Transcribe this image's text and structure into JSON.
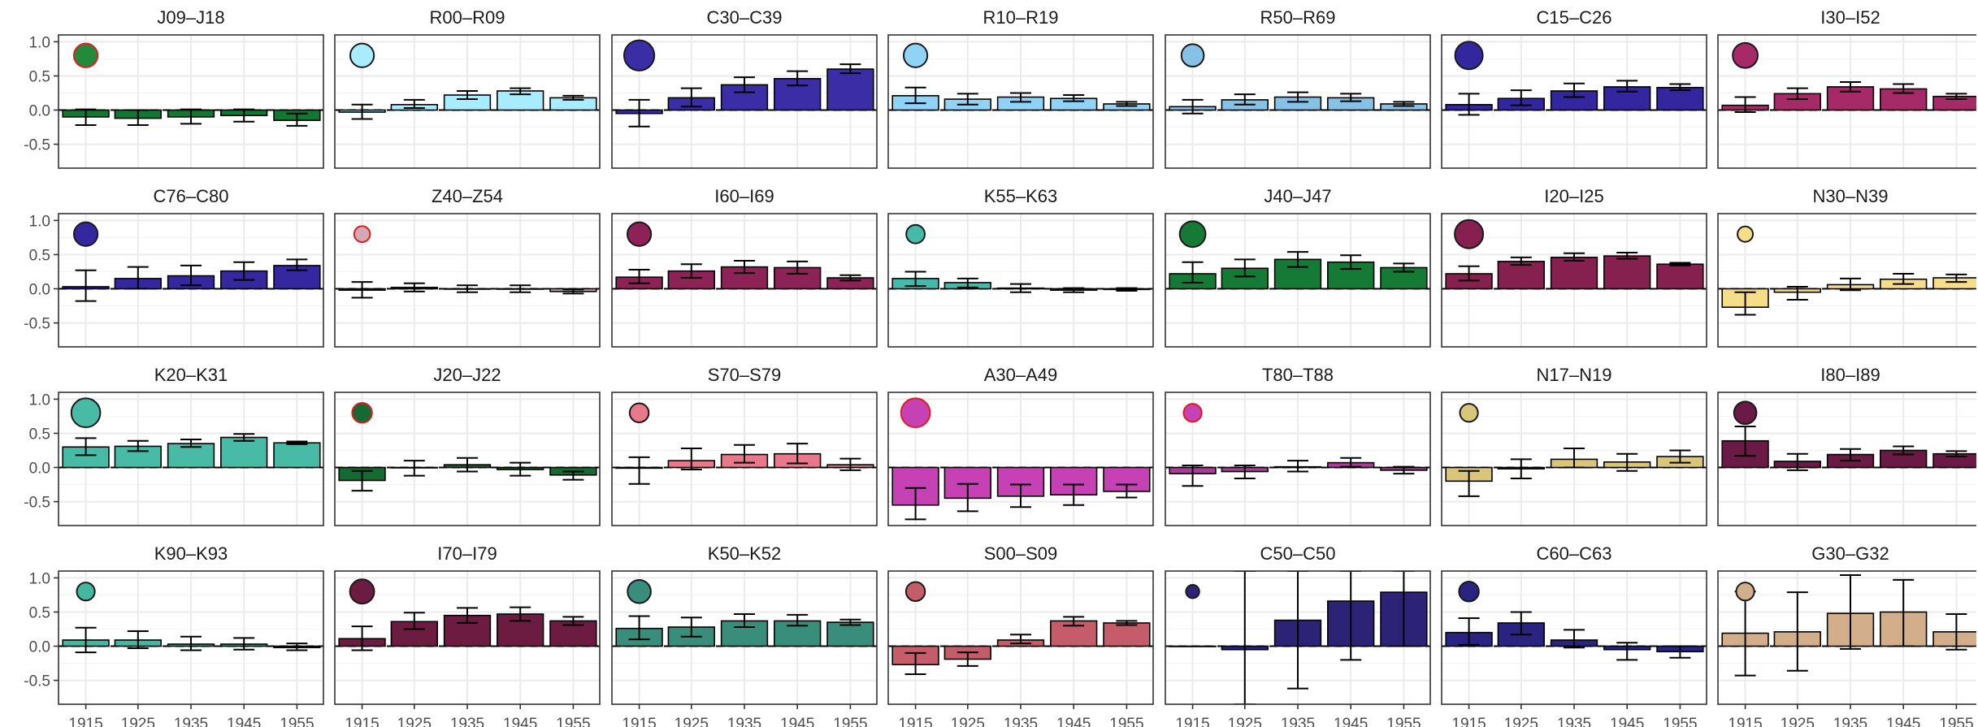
{
  "chart_data": {
    "type": "bar",
    "layout": "small-multiples 4 rows x 7 columns (rightmost column cropped)",
    "categories": [
      "1915",
      "1925",
      "1935",
      "1945",
      "1955"
    ],
    "ylim": [
      -0.85,
      1.1
    ],
    "yticks": [
      -0.5,
      0.0,
      0.5,
      1.0
    ],
    "ytick_labels": [
      "-0.5",
      "0.0",
      "0.5",
      "1.0"
    ],
    "grid": true,
    "zero_line": "dashed",
    "marker_y": 0.8,
    "marker_x": "1915",
    "error_bars": "high and low values per bar",
    "panels": [
      {
        "title": "J09–J18",
        "color": "#117733",
        "marker_fill": "#228B3B",
        "marker_stroke": "#e41a1c",
        "marker_size": 0.6,
        "values": [
          -0.1,
          -0.12,
          -0.1,
          -0.08,
          -0.15
        ],
        "err_low": [
          -0.22,
          -0.22,
          -0.2,
          -0.17,
          -0.23
        ],
        "err_high": [
          0.01,
          0.0,
          0.01,
          0.01,
          -0.05
        ]
      },
      {
        "title": "R00–R09",
        "color": "#a8ecff",
        "marker_fill": "#a8ecff",
        "marker_stroke": "#1a1a1a",
        "marker_size": 0.6,
        "values": [
          -0.03,
          0.08,
          0.22,
          0.28,
          0.18
        ],
        "err_low": [
          -0.13,
          0.03,
          0.16,
          0.23,
          0.15
        ],
        "err_high": [
          0.08,
          0.15,
          0.28,
          0.32,
          0.21
        ]
      },
      {
        "title": "C30–C39",
        "color": "#3b2da5",
        "marker_fill": "#3b2da5",
        "marker_stroke": "#1a1a1a",
        "marker_size": 0.85,
        "values": [
          -0.05,
          0.18,
          0.37,
          0.46,
          0.6
        ],
        "err_low": [
          -0.24,
          0.05,
          0.26,
          0.36,
          0.54
        ],
        "err_high": [
          0.15,
          0.32,
          0.48,
          0.57,
          0.67
        ]
      },
      {
        "title": "R10–R19",
        "color": "#8fd3f7",
        "marker_fill": "#8fd3f7",
        "marker_stroke": "#1a1a1a",
        "marker_size": 0.6,
        "values": [
          0.21,
          0.16,
          0.19,
          0.17,
          0.09
        ],
        "err_low": [
          0.1,
          0.08,
          0.12,
          0.13,
          0.06
        ],
        "err_high": [
          0.33,
          0.24,
          0.25,
          0.22,
          0.12
        ]
      },
      {
        "title": "R50–R69",
        "color": "#86c2e6",
        "marker_fill": "#86c2e6",
        "marker_stroke": "#1a1a1a",
        "marker_size": 0.55,
        "values": [
          0.05,
          0.15,
          0.19,
          0.18,
          0.09
        ],
        "err_low": [
          -0.05,
          0.08,
          0.12,
          0.13,
          0.06
        ],
        "err_high": [
          0.15,
          0.23,
          0.26,
          0.24,
          0.12
        ]
      },
      {
        "title": "C15–C26",
        "color": "#34269e",
        "marker_fill": "#34269e",
        "marker_stroke": "#1a1a1a",
        "marker_size": 0.75,
        "values": [
          0.08,
          0.17,
          0.28,
          0.34,
          0.33
        ],
        "err_low": [
          -0.07,
          0.07,
          0.19,
          0.27,
          0.29
        ],
        "err_high": [
          0.24,
          0.29,
          0.39,
          0.43,
          0.38
        ]
      },
      {
        "title": "I30–I52",
        "color": "#a62a68",
        "marker_fill": "#a62a68",
        "marker_stroke": "#1a1a1a",
        "marker_size": 0.65,
        "values": [
          0.07,
          0.24,
          0.34,
          0.31,
          0.2
        ],
        "err_low": [
          -0.03,
          0.16,
          0.27,
          0.25,
          0.16
        ],
        "err_high": [
          0.19,
          0.32,
          0.41,
          0.38,
          0.24
        ]
      },
      {
        "title": "C76–C80",
        "color": "#35289f",
        "marker_fill": "#35289f",
        "marker_stroke": "#1a1a1a",
        "marker_size": 0.6,
        "values": [
          0.03,
          0.15,
          0.19,
          0.26,
          0.34
        ],
        "err_low": [
          -0.18,
          0.0,
          0.05,
          0.13,
          0.27
        ],
        "err_high": [
          0.27,
          0.32,
          0.34,
          0.39,
          0.43
        ]
      },
      {
        "title": "Z40–Z54",
        "color": "#d1a8b6",
        "marker_fill": "#d1a8b6",
        "marker_stroke": "#e41a1c",
        "marker_size": 0.3,
        "values": [
          -0.02,
          0.02,
          0.0,
          0.0,
          -0.04
        ],
        "err_low": [
          -0.13,
          -0.04,
          -0.05,
          -0.05,
          -0.07
        ],
        "err_high": [
          0.1,
          0.08,
          0.05,
          0.05,
          -0.01
        ]
      },
      {
        "title": "I60–I69",
        "color": "#8c2255",
        "marker_fill": "#8c2255",
        "marker_stroke": "#1a1a1a",
        "marker_size": 0.6,
        "values": [
          0.17,
          0.26,
          0.32,
          0.31,
          0.16
        ],
        "err_low": [
          0.08,
          0.16,
          0.23,
          0.22,
          0.12
        ],
        "err_high": [
          0.28,
          0.36,
          0.41,
          0.4,
          0.2
        ]
      },
      {
        "title": "K55–K63",
        "color": "#44bba8",
        "marker_fill": "#44bba8",
        "marker_stroke": "#1a1a1a",
        "marker_size": 0.4,
        "values": [
          0.15,
          0.09,
          0.01,
          -0.02,
          -0.01
        ],
        "err_low": [
          0.04,
          0.02,
          -0.05,
          -0.05,
          -0.03
        ],
        "err_high": [
          0.25,
          0.15,
          0.07,
          0.01,
          0.01
        ]
      },
      {
        "title": "J40–J47",
        "color": "#167a37",
        "marker_fill": "#167a37",
        "marker_stroke": "#1a1a1a",
        "marker_size": 0.68,
        "values": [
          0.22,
          0.3,
          0.43,
          0.39,
          0.31
        ],
        "err_low": [
          0.09,
          0.18,
          0.32,
          0.29,
          0.25
        ],
        "err_high": [
          0.39,
          0.43,
          0.54,
          0.49,
          0.37
        ]
      },
      {
        "title": "I20–I25",
        "color": "#85204f",
        "marker_fill": "#85204f",
        "marker_stroke": "#1a1a1a",
        "marker_size": 0.78,
        "values": [
          0.22,
          0.4,
          0.46,
          0.48,
          0.36
        ],
        "err_low": [
          0.12,
          0.35,
          0.41,
          0.44,
          0.34
        ],
        "err_high": [
          0.33,
          0.46,
          0.52,
          0.53,
          0.38
        ]
      },
      {
        "title": "N30–N39",
        "color": "#f6dd88",
        "marker_fill": "#f6dd88",
        "marker_stroke": "#1a1a1a",
        "marker_size": 0.28,
        "values": [
          -0.27,
          -0.05,
          0.06,
          0.14,
          0.16
        ],
        "err_low": [
          -0.38,
          -0.16,
          -0.02,
          0.07,
          0.1
        ],
        "err_high": [
          -0.05,
          0.03,
          0.15,
          0.22,
          0.21
        ]
      },
      {
        "title": "K20–K31",
        "color": "#47bba6",
        "marker_fill": "#47bba6",
        "marker_stroke": "#1a1a1a",
        "marker_size": 0.8,
        "values": [
          0.3,
          0.31,
          0.35,
          0.44,
          0.36
        ],
        "err_low": [
          0.18,
          0.24,
          0.3,
          0.39,
          0.34
        ],
        "err_high": [
          0.43,
          0.39,
          0.41,
          0.49,
          0.38
        ]
      },
      {
        "title": "J20–J22",
        "color": "#146a30",
        "marker_fill": "#146a30",
        "marker_stroke": "#e41a1c",
        "marker_size": 0.45,
        "values": [
          -0.19,
          0.0,
          0.04,
          -0.03,
          -0.11
        ],
        "err_low": [
          -0.34,
          -0.12,
          -0.06,
          -0.12,
          -0.18
        ],
        "err_high": [
          -0.05,
          0.1,
          0.14,
          0.07,
          -0.06
        ]
      },
      {
        "title": "S70–S79",
        "color": "#e8788b",
        "marker_fill": "#e8788b",
        "marker_stroke": "#1a1a1a",
        "marker_size": 0.42,
        "values": [
          -0.01,
          0.1,
          0.19,
          0.2,
          0.04
        ],
        "err_low": [
          -0.24,
          -0.03,
          0.07,
          0.06,
          -0.04
        ],
        "err_high": [
          0.15,
          0.28,
          0.33,
          0.35,
          0.13
        ]
      },
      {
        "title": "A30–A49",
        "color": "#c541b4",
        "marker_fill": "#c541b4",
        "marker_stroke": "#e41a1c",
        "marker_size": 0.8,
        "values": [
          -0.55,
          -0.45,
          -0.42,
          -0.4,
          -0.35
        ],
        "err_low": [
          -0.76,
          -0.64,
          -0.58,
          -0.55,
          -0.44
        ],
        "err_high": [
          -0.3,
          -0.24,
          -0.25,
          -0.25,
          -0.25
        ]
      },
      {
        "title": "T80–T88",
        "color": "#a93d99",
        "marker_fill": "#c541b4",
        "marker_stroke": "#e41a1c",
        "marker_size": 0.38,
        "values": [
          -0.09,
          -0.06,
          0.01,
          0.07,
          -0.04
        ],
        "err_low": [
          -0.27,
          -0.16,
          -0.06,
          0.01,
          -0.09
        ],
        "err_high": [
          0.03,
          0.03,
          0.1,
          0.14,
          0.01
        ]
      },
      {
        "title": "N17–N19",
        "color": "#d9c67a",
        "marker_fill": "#d9c67a",
        "marker_stroke": "#1a1a1a",
        "marker_size": 0.38,
        "values": [
          -0.2,
          -0.02,
          0.12,
          0.08,
          0.16
        ],
        "err_low": [
          -0.42,
          -0.16,
          0.0,
          -0.05,
          0.07
        ],
        "err_high": [
          -0.05,
          0.12,
          0.28,
          0.2,
          0.25
        ]
      },
      {
        "title": "I80–I89",
        "color": "#6a1a45",
        "marker_fill": "#6a1a45",
        "marker_stroke": "#1a1a1a",
        "marker_size": 0.55,
        "values": [
          0.39,
          0.09,
          0.19,
          0.25,
          0.2
        ],
        "err_low": [
          0.17,
          -0.04,
          0.1,
          0.19,
          0.16
        ],
        "err_high": [
          0.6,
          0.2,
          0.27,
          0.31,
          0.24
        ]
      },
      {
        "title": "K90–K93",
        "color": "#45b6a0",
        "marker_fill": "#45b6a0",
        "marker_stroke": "#1a1a1a",
        "marker_size": 0.38,
        "values": [
          0.09,
          0.09,
          0.03,
          0.03,
          -0.02
        ],
        "err_low": [
          -0.09,
          -0.03,
          -0.06,
          -0.05,
          -0.06
        ],
        "err_high": [
          0.27,
          0.22,
          0.14,
          0.12,
          0.04
        ]
      },
      {
        "title": "I70–I79",
        "color": "#6b1c40",
        "marker_fill": "#6b1c40",
        "marker_stroke": "#1a1a1a",
        "marker_size": 0.62,
        "values": [
          0.11,
          0.36,
          0.45,
          0.47,
          0.37
        ],
        "err_low": [
          -0.06,
          0.25,
          0.34,
          0.37,
          0.31
        ],
        "err_high": [
          0.29,
          0.49,
          0.56,
          0.57,
          0.43
        ]
      },
      {
        "title": "K50–K52",
        "color": "#388e7a",
        "marker_fill": "#388e7a",
        "marker_stroke": "#1a1a1a",
        "marker_size": 0.58,
        "values": [
          0.26,
          0.28,
          0.37,
          0.37,
          0.35
        ],
        "err_low": [
          0.1,
          0.14,
          0.28,
          0.3,
          0.31
        ],
        "err_high": [
          0.44,
          0.42,
          0.47,
          0.46,
          0.39
        ]
      },
      {
        "title": "S00–S09",
        "color": "#c55c6a",
        "marker_fill": "#c55c6a",
        "marker_stroke": "#1a1a1a",
        "marker_size": 0.42,
        "values": [
          -0.27,
          -0.19,
          0.09,
          0.37,
          0.34
        ],
        "err_low": [
          -0.41,
          -0.29,
          0.04,
          0.3,
          0.31
        ],
        "err_high": [
          -0.1,
          -0.09,
          0.17,
          0.43,
          0.37
        ]
      },
      {
        "title": "C50–C50",
        "color": "#2c2377",
        "marker_fill": "#2c2377",
        "marker_stroke": "#1a1a1a",
        "marker_size": 0.2,
        "values": [
          0.0,
          -0.05,
          0.38,
          0.66,
          0.79
        ],
        "err_low": [
          0.0,
          -0.85,
          -0.62,
          -0.2,
          0.0
        ],
        "err_high": [
          0.0,
          1.1,
          1.1,
          1.1,
          1.1
        ]
      },
      {
        "title": "C60–C63",
        "color": "#2a2480",
        "marker_fill": "#2a2480",
        "marker_stroke": "#1a1a1a",
        "marker_size": 0.45,
        "values": [
          0.2,
          0.34,
          0.09,
          -0.05,
          -0.08
        ],
        "err_low": [
          0.02,
          0.17,
          -0.02,
          -0.2,
          -0.17
        ],
        "err_high": [
          0.41,
          0.5,
          0.24,
          0.05,
          0.0
        ]
      },
      {
        "title": "G30–G32",
        "color": "#d2ae8a",
        "marker_fill": "#d2ae8a",
        "marker_stroke": "#1a1a1a",
        "marker_size": 0.38,
        "values": [
          0.19,
          0.21,
          0.48,
          0.5,
          0.21
        ],
        "err_low": [
          -0.43,
          -0.36,
          -0.04,
          0.0,
          -0.05
        ],
        "err_high": [
          0.8,
          0.79,
          1.04,
          0.97,
          0.47
        ]
      }
    ]
  }
}
